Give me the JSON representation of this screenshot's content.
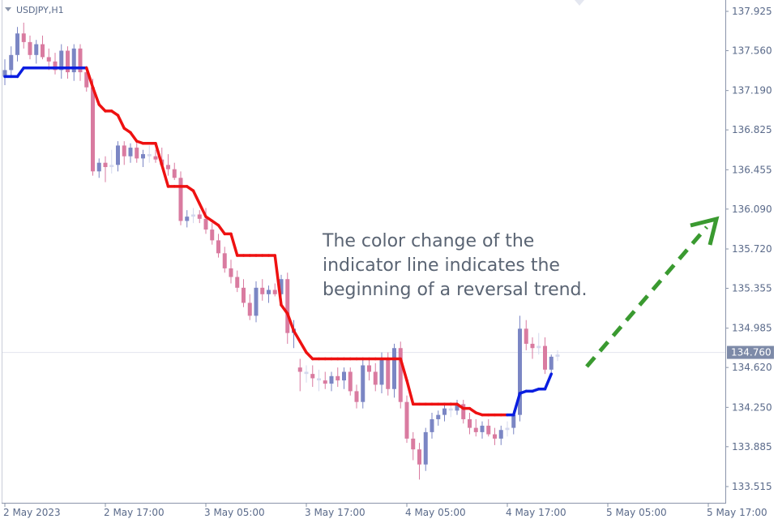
{
  "header": {
    "symbol": "USDJPY,H1"
  },
  "annotation": {
    "lines": [
      "The color change of the",
      "indicator line indicates the",
      "beginning of a reversal trend."
    ]
  },
  "colors": {
    "bull_candle": "#7b86c4",
    "bear_candle": "#d97ba0",
    "doji_candle": "#d4d8ee",
    "indicator_down": "#ee1111",
    "indicator_up": "#0a1ee0",
    "arrow": "#3a9a30",
    "price_badge": "#7d8aa8"
  },
  "chart_data": {
    "type": "candlestick",
    "symbol": "USDJPY",
    "timeframe": "H1",
    "ylim": [
      133.4,
      138.02
    ],
    "y_ticks": [
      "137.925",
      "137.560",
      "137.190",
      "136.825",
      "136.455",
      "136.090",
      "135.720",
      "135.355",
      "134.985",
      "134.620",
      "134.250",
      "133.885",
      "133.515"
    ],
    "x_tick_labels": [
      "2 May 2023",
      "2 May 17:00",
      "3 May 05:00",
      "3 May 17:00",
      "4 May 05:00",
      "4 May 17:00",
      "5 May 05:00",
      "5 May 17:00"
    ],
    "x_tick_candle_index": [
      0,
      16,
      32,
      48,
      64,
      80,
      96,
      112
    ],
    "current_price": 134.76,
    "current_price_label": "134.760",
    "candles": [
      {
        "o": 137.32,
        "h": 137.48,
        "l": 137.24,
        "c": 137.38
      },
      {
        "o": 137.38,
        "h": 137.6,
        "l": 137.32,
        "c": 137.52
      },
      {
        "o": 137.52,
        "h": 137.78,
        "l": 137.46,
        "c": 137.72
      },
      {
        "o": 137.72,
        "h": 137.82,
        "l": 137.58,
        "c": 137.64
      },
      {
        "o": 137.64,
        "h": 137.7,
        "l": 137.48,
        "c": 137.52
      },
      {
        "o": 137.52,
        "h": 137.66,
        "l": 137.44,
        "c": 137.62
      },
      {
        "o": 137.62,
        "h": 137.7,
        "l": 137.48,
        "c": 137.5
      },
      {
        "o": 137.5,
        "h": 137.58,
        "l": 137.38,
        "c": 137.46
      },
      {
        "o": 137.46,
        "h": 137.54,
        "l": 137.34,
        "c": 137.38
      },
      {
        "o": 137.38,
        "h": 137.62,
        "l": 137.3,
        "c": 137.56
      },
      {
        "o": 137.56,
        "h": 137.6,
        "l": 137.3,
        "c": 137.36
      },
      {
        "o": 137.36,
        "h": 137.62,
        "l": 137.28,
        "c": 137.58
      },
      {
        "o": 137.58,
        "h": 137.62,
        "l": 137.28,
        "c": 137.36
      },
      {
        "o": 137.36,
        "h": 137.42,
        "l": 137.18,
        "c": 137.22
      },
      {
        "o": 137.22,
        "h": 137.3,
        "l": 136.4,
        "c": 136.44
      },
      {
        "o": 136.44,
        "h": 136.56,
        "l": 136.38,
        "c": 136.52
      },
      {
        "o": 136.52,
        "h": 136.58,
        "l": 136.34,
        "c": 136.48
      },
      {
        "o": 136.48,
        "h": 136.64,
        "l": 136.42,
        "c": 136.5
      },
      {
        "o": 136.5,
        "h": 136.72,
        "l": 136.44,
        "c": 136.68
      },
      {
        "o": 136.68,
        "h": 136.72,
        "l": 136.5,
        "c": 136.58
      },
      {
        "o": 136.58,
        "h": 136.7,
        "l": 136.52,
        "c": 136.66
      },
      {
        "o": 136.66,
        "h": 136.72,
        "l": 136.52,
        "c": 136.56
      },
      {
        "o": 136.56,
        "h": 136.64,
        "l": 136.48,
        "c": 136.6
      },
      {
        "o": 136.6,
        "h": 136.68,
        "l": 136.52,
        "c": 136.58
      },
      {
        "o": 136.58,
        "h": 136.64,
        "l": 136.52,
        "c": 136.55
      },
      {
        "o": 136.55,
        "h": 136.66,
        "l": 136.48,
        "c": 136.5
      },
      {
        "o": 136.5,
        "h": 136.6,
        "l": 136.4,
        "c": 136.46
      },
      {
        "o": 136.46,
        "h": 136.52,
        "l": 136.36,
        "c": 136.38
      },
      {
        "o": 136.38,
        "h": 136.44,
        "l": 135.94,
        "c": 135.98
      },
      {
        "o": 135.98,
        "h": 136.08,
        "l": 135.92,
        "c": 136.02
      },
      {
        "o": 136.02,
        "h": 136.1,
        "l": 135.96,
        "c": 136.04
      },
      {
        "o": 136.04,
        "h": 136.08,
        "l": 135.96,
        "c": 136.0
      },
      {
        "o": 136.0,
        "h": 136.1,
        "l": 135.86,
        "c": 135.9
      },
      {
        "o": 135.9,
        "h": 135.96,
        "l": 135.76,
        "c": 135.8
      },
      {
        "o": 135.8,
        "h": 135.86,
        "l": 135.64,
        "c": 135.68
      },
      {
        "o": 135.68,
        "h": 135.74,
        "l": 135.5,
        "c": 135.54
      },
      {
        "o": 135.54,
        "h": 135.62,
        "l": 135.4,
        "c": 135.46
      },
      {
        "o": 135.46,
        "h": 135.52,
        "l": 135.32,
        "c": 135.36
      },
      {
        "o": 135.36,
        "h": 135.44,
        "l": 135.18,
        "c": 135.22
      },
      {
        "o": 135.22,
        "h": 135.3,
        "l": 135.06,
        "c": 135.1
      },
      {
        "o": 135.1,
        "h": 135.42,
        "l": 135.04,
        "c": 135.36
      },
      {
        "o": 135.36,
        "h": 135.44,
        "l": 135.24,
        "c": 135.3
      },
      {
        "o": 135.3,
        "h": 135.38,
        "l": 135.22,
        "c": 135.34
      },
      {
        "o": 135.34,
        "h": 135.4,
        "l": 135.28,
        "c": 135.3
      },
      {
        "o": 135.3,
        "h": 135.48,
        "l": 135.24,
        "c": 135.44
      },
      {
        "o": 135.44,
        "h": 135.5,
        "l": 134.84,
        "c": 134.94
      },
      {
        "o": 134.94,
        "h": 135.06,
        "l": 134.8,
        "c": 134.98
      },
      {
        "o": 134.62,
        "h": 134.7,
        "l": 134.4,
        "c": 134.58
      },
      {
        "o": 134.58,
        "h": 134.64,
        "l": 134.48,
        "c": 134.56
      },
      {
        "o": 134.56,
        "h": 134.64,
        "l": 134.44,
        "c": 134.52
      },
      {
        "o": 134.52,
        "h": 134.6,
        "l": 134.4,
        "c": 134.5
      },
      {
        "o": 134.5,
        "h": 134.58,
        "l": 134.42,
        "c": 134.47
      },
      {
        "o": 134.47,
        "h": 134.58,
        "l": 134.4,
        "c": 134.54
      },
      {
        "o": 134.54,
        "h": 134.62,
        "l": 134.44,
        "c": 134.5
      },
      {
        "o": 134.5,
        "h": 134.62,
        "l": 134.42,
        "c": 134.58
      },
      {
        "o": 134.58,
        "h": 134.62,
        "l": 134.36,
        "c": 134.4
      },
      {
        "o": 134.4,
        "h": 134.46,
        "l": 134.24,
        "c": 134.3
      },
      {
        "o": 134.3,
        "h": 134.7,
        "l": 134.24,
        "c": 134.64
      },
      {
        "o": 134.64,
        "h": 134.7,
        "l": 134.5,
        "c": 134.58
      },
      {
        "o": 134.58,
        "h": 134.66,
        "l": 134.4,
        "c": 134.46
      },
      {
        "o": 134.46,
        "h": 134.76,
        "l": 134.38,
        "c": 134.7
      },
      {
        "o": 134.7,
        "h": 134.76,
        "l": 134.36,
        "c": 134.42
      },
      {
        "o": 134.42,
        "h": 134.84,
        "l": 134.34,
        "c": 134.8
      },
      {
        "o": 134.8,
        "h": 134.86,
        "l": 134.24,
        "c": 134.3
      },
      {
        "o": 134.3,
        "h": 134.36,
        "l": 133.92,
        "c": 133.96
      },
      {
        "o": 133.96,
        "h": 134.02,
        "l": 133.76,
        "c": 133.86
      },
      {
        "o": 133.86,
        "h": 133.92,
        "l": 133.58,
        "c": 133.72
      },
      {
        "o": 133.72,
        "h": 134.06,
        "l": 133.66,
        "c": 134.02
      },
      {
        "o": 134.02,
        "h": 134.2,
        "l": 133.96,
        "c": 134.14
      },
      {
        "o": 134.14,
        "h": 134.22,
        "l": 134.08,
        "c": 134.18
      },
      {
        "o": 134.18,
        "h": 134.28,
        "l": 134.12,
        "c": 134.24
      },
      {
        "o": 134.24,
        "h": 134.3,
        "l": 134.16,
        "c": 134.22
      },
      {
        "o": 134.22,
        "h": 134.32,
        "l": 134.18,
        "c": 134.28
      },
      {
        "o": 134.28,
        "h": 134.32,
        "l": 134.1,
        "c": 134.14
      },
      {
        "o": 134.14,
        "h": 134.2,
        "l": 134.0,
        "c": 134.06
      },
      {
        "o": 134.06,
        "h": 134.14,
        "l": 133.98,
        "c": 134.02
      },
      {
        "o": 134.02,
        "h": 134.12,
        "l": 133.96,
        "c": 134.08
      },
      {
        "o": 134.08,
        "h": 134.14,
        "l": 133.98,
        "c": 134.0
      },
      {
        "o": 134.0,
        "h": 134.06,
        "l": 133.9,
        "c": 133.96
      },
      {
        "o": 133.96,
        "h": 134.08,
        "l": 133.9,
        "c": 134.04
      },
      {
        "o": 134.04,
        "h": 134.12,
        "l": 133.98,
        "c": 134.06
      },
      {
        "o": 134.06,
        "h": 134.22,
        "l": 134.0,
        "c": 134.18
      },
      {
        "o": 134.18,
        "h": 135.1,
        "l": 134.12,
        "c": 134.98
      },
      {
        "o": 134.98,
        "h": 135.06,
        "l": 134.78,
        "c": 134.84
      },
      {
        "o": 134.84,
        "h": 134.9,
        "l": 134.7,
        "c": 134.8
      },
      {
        "o": 134.8,
        "h": 134.94,
        "l": 134.74,
        "c": 134.82
      },
      {
        "o": 134.82,
        "h": 134.9,
        "l": 134.56,
        "c": 134.6
      },
      {
        "o": 134.6,
        "h": 134.74,
        "l": 134.56,
        "c": 134.72
      },
      {
        "o": 134.72,
        "h": 134.78,
        "l": 134.68,
        "c": 134.74
      }
    ],
    "indicator": [
      {
        "v": 137.32,
        "trend": "up"
      },
      {
        "v": 137.32,
        "trend": "up"
      },
      {
        "v": 137.32,
        "trend": "up"
      },
      {
        "v": 137.4,
        "trend": "up"
      },
      {
        "v": 137.4,
        "trend": "up"
      },
      {
        "v": 137.4,
        "trend": "up"
      },
      {
        "v": 137.4,
        "trend": "up"
      },
      {
        "v": 137.4,
        "trend": "up"
      },
      {
        "v": 137.4,
        "trend": "up"
      },
      {
        "v": 137.4,
        "trend": "up"
      },
      {
        "v": 137.4,
        "trend": "up"
      },
      {
        "v": 137.4,
        "trend": "up"
      },
      {
        "v": 137.4,
        "trend": "up"
      },
      {
        "v": 137.4,
        "trend": "up"
      },
      {
        "v": 137.22,
        "trend": "down"
      },
      {
        "v": 137.06,
        "trend": "down"
      },
      {
        "v": 137.0,
        "trend": "down"
      },
      {
        "v": 137.0,
        "trend": "down"
      },
      {
        "v": 136.96,
        "trend": "down"
      },
      {
        "v": 136.84,
        "trend": "down"
      },
      {
        "v": 136.8,
        "trend": "down"
      },
      {
        "v": 136.72,
        "trend": "down"
      },
      {
        "v": 136.7,
        "trend": "down"
      },
      {
        "v": 136.7,
        "trend": "down"
      },
      {
        "v": 136.7,
        "trend": "down"
      },
      {
        "v": 136.5,
        "trend": "down"
      },
      {
        "v": 136.3,
        "trend": "down"
      },
      {
        "v": 136.3,
        "trend": "down"
      },
      {
        "v": 136.3,
        "trend": "down"
      },
      {
        "v": 136.3,
        "trend": "down"
      },
      {
        "v": 136.26,
        "trend": "down"
      },
      {
        "v": 136.14,
        "trend": "down"
      },
      {
        "v": 136.02,
        "trend": "down"
      },
      {
        "v": 135.98,
        "trend": "down"
      },
      {
        "v": 135.94,
        "trend": "down"
      },
      {
        "v": 135.86,
        "trend": "down"
      },
      {
        "v": 135.86,
        "trend": "down"
      },
      {
        "v": 135.66,
        "trend": "down"
      },
      {
        "v": 135.66,
        "trend": "down"
      },
      {
        "v": 135.66,
        "trend": "down"
      },
      {
        "v": 135.66,
        "trend": "down"
      },
      {
        "v": 135.66,
        "trend": "down"
      },
      {
        "v": 135.66,
        "trend": "down"
      },
      {
        "v": 135.66,
        "trend": "down"
      },
      {
        "v": 135.2,
        "trend": "down"
      },
      {
        "v": 135.12,
        "trend": "down"
      },
      {
        "v": 134.96,
        "trend": "down"
      },
      {
        "v": 134.86,
        "trend": "down"
      },
      {
        "v": 134.76,
        "trend": "down"
      },
      {
        "v": 134.7,
        "trend": "down"
      },
      {
        "v": 134.7,
        "trend": "down"
      },
      {
        "v": 134.7,
        "trend": "down"
      },
      {
        "v": 134.7,
        "trend": "down"
      },
      {
        "v": 134.7,
        "trend": "down"
      },
      {
        "v": 134.7,
        "trend": "down"
      },
      {
        "v": 134.7,
        "trend": "down"
      },
      {
        "v": 134.7,
        "trend": "down"
      },
      {
        "v": 134.7,
        "trend": "down"
      },
      {
        "v": 134.7,
        "trend": "down"
      },
      {
        "v": 134.7,
        "trend": "down"
      },
      {
        "v": 134.7,
        "trend": "down"
      },
      {
        "v": 134.7,
        "trend": "down"
      },
      {
        "v": 134.7,
        "trend": "down"
      },
      {
        "v": 134.7,
        "trend": "down"
      },
      {
        "v": 134.5,
        "trend": "down"
      },
      {
        "v": 134.28,
        "trend": "down"
      },
      {
        "v": 134.28,
        "trend": "down"
      },
      {
        "v": 134.28,
        "trend": "down"
      },
      {
        "v": 134.28,
        "trend": "down"
      },
      {
        "v": 134.28,
        "trend": "down"
      },
      {
        "v": 134.28,
        "trend": "down"
      },
      {
        "v": 134.28,
        "trend": "down"
      },
      {
        "v": 134.28,
        "trend": "down"
      },
      {
        "v": 134.24,
        "trend": "down"
      },
      {
        "v": 134.24,
        "trend": "down"
      },
      {
        "v": 134.2,
        "trend": "down"
      },
      {
        "v": 134.18,
        "trend": "down"
      },
      {
        "v": 134.18,
        "trend": "down"
      },
      {
        "v": 134.18,
        "trend": "down"
      },
      {
        "v": 134.18,
        "trend": "down"
      },
      {
        "v": 134.18,
        "trend": "down"
      },
      {
        "v": 134.18,
        "trend": "up"
      },
      {
        "v": 134.38,
        "trend": "up"
      },
      {
        "v": 134.4,
        "trend": "up"
      },
      {
        "v": 134.4,
        "trend": "up"
      },
      {
        "v": 134.42,
        "trend": "up"
      },
      {
        "v": 134.42,
        "trend": "up"
      },
      {
        "v": 134.56,
        "trend": "up"
      }
    ]
  }
}
